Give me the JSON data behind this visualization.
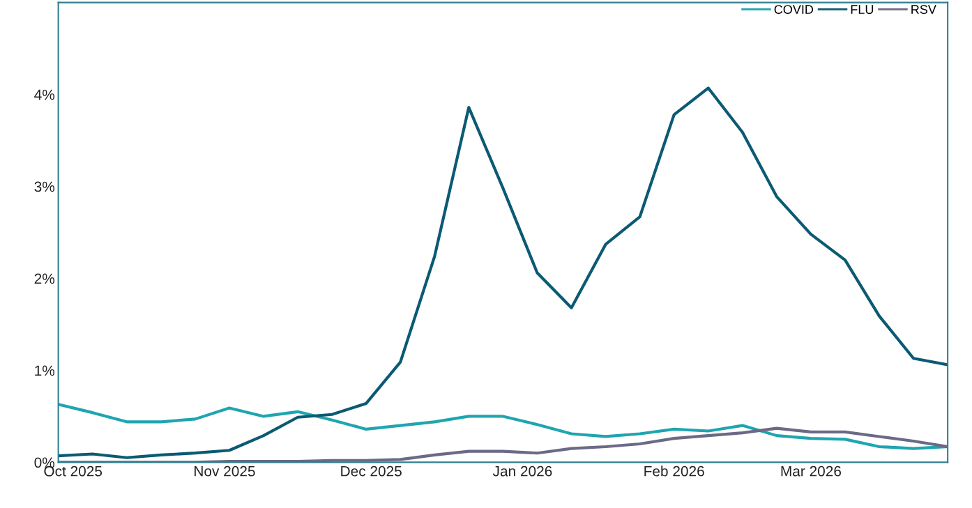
{
  "chart_data": {
    "type": "line",
    "x": [
      "2025-09-28",
      "2025-10-05",
      "2025-10-12",
      "2025-10-19",
      "2025-10-26",
      "2025-11-02",
      "2025-11-09",
      "2025-11-16",
      "2025-11-23",
      "2025-11-30",
      "2025-12-07",
      "2025-12-14",
      "2025-12-21",
      "2025-12-28",
      "2026-01-04",
      "2026-01-11",
      "2026-01-18",
      "2026-01-25",
      "2026-02-01",
      "2026-02-08",
      "2026-02-15",
      "2026-02-22",
      "2026-03-01",
      "2026-03-08",
      "2026-03-15",
      "2026-03-22",
      "2026-03-29"
    ],
    "series": [
      {
        "name": "COVID",
        "color": "#1fa5b0",
        "values": [
          0.63,
          0.54,
          0.44,
          0.44,
          0.47,
          0.59,
          0.5,
          0.55,
          0.46,
          0.36,
          0.4,
          0.44,
          0.5,
          0.5,
          0.41,
          0.31,
          0.28,
          0.31,
          0.36,
          0.34,
          0.4,
          0.29,
          0.26,
          0.25,
          0.17,
          0.15,
          0.17
        ]
      },
      {
        "name": "FLU",
        "color": "#0b5a73",
        "values": [
          0.07,
          0.09,
          0.05,
          0.08,
          0.1,
          0.13,
          0.29,
          0.49,
          0.52,
          0.64,
          1.09,
          2.24,
          3.86,
          2.98,
          2.06,
          1.68,
          2.37,
          2.67,
          3.78,
          4.07,
          3.59,
          2.89,
          2.48,
          2.2,
          1.59,
          1.13,
          1.06
        ]
      },
      {
        "name": "RSV",
        "color": "#6b6a86",
        "values": [
          0.0,
          0.0,
          0.0,
          0.0,
          0.0,
          0.01,
          0.01,
          0.01,
          0.02,
          0.02,
          0.03,
          0.08,
          0.12,
          0.12,
          0.1,
          0.15,
          0.17,
          0.2,
          0.26,
          0.29,
          0.32,
          0.37,
          0.33,
          0.33,
          0.28,
          0.23,
          0.17
        ]
      }
    ],
    "xlim": [
      "2025-09-28",
      "2026-03-29"
    ],
    "xticks": [
      {
        "value": "2025-10-01",
        "label": "Oct 2025"
      },
      {
        "value": "2025-11-01",
        "label": "Nov 2025"
      },
      {
        "value": "2025-12-01",
        "label": "Dec 2025"
      },
      {
        "value": "2026-01-01",
        "label": "Jan 2026"
      },
      {
        "value": "2026-02-01",
        "label": "Feb 2026"
      },
      {
        "value": "2026-03-01",
        "label": "Mar 2026"
      }
    ],
    "ylim": [
      0,
      5
    ],
    "yticks": [
      {
        "value": 0,
        "label": "0%"
      },
      {
        "value": 1,
        "label": "1%"
      },
      {
        "value": 2,
        "label": "2%"
      },
      {
        "value": 3,
        "label": "3%"
      },
      {
        "value": 4,
        "label": "4%"
      }
    ],
    "grid": false,
    "legend": "top right",
    "marker": "none",
    "line_style": "solid"
  }
}
